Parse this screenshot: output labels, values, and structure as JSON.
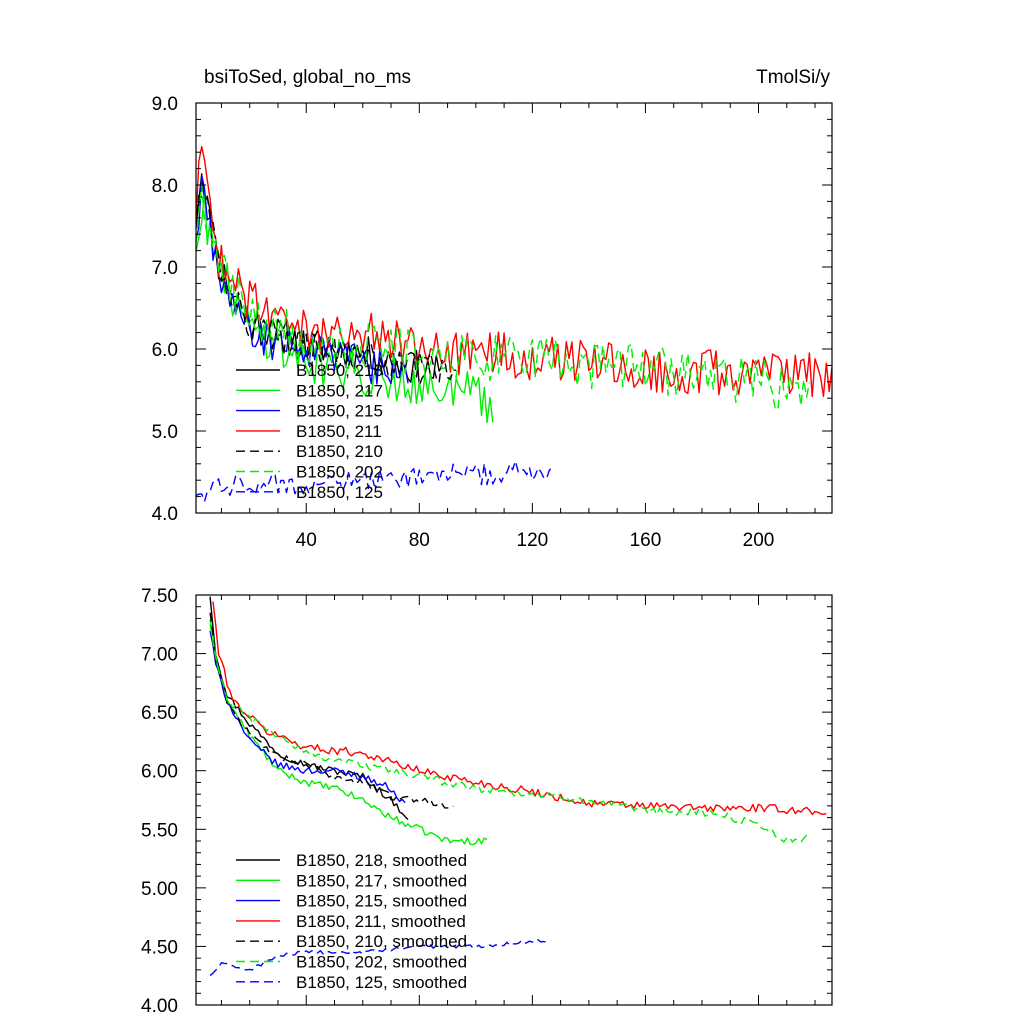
{
  "chart_data": [
    {
      "type": "line",
      "title_left": "bsiToSed, global_no_ms",
      "title_right": "TmolSi/y",
      "xlabel": "",
      "ylabel": "",
      "xlim": [
        1,
        226
      ],
      "ylim": [
        4.0,
        9.0
      ],
      "x_major_ticks": [
        40,
        80,
        120,
        160,
        200
      ],
      "x_major_labels": [
        "40",
        "80",
        "120",
        "160",
        "200"
      ],
      "y_major_ticks": [
        4.0,
        5.0,
        6.0,
        7.0,
        8.0,
        9.0
      ],
      "y_major_labels": [
        "4.0",
        "5.0",
        "6.0",
        "7.0",
        "8.0",
        "9.0"
      ],
      "grid": false,
      "legend_position": "lower-left",
      "series": [
        {
          "name": "B1850, 218",
          "color": "#000000",
          "dash": "solid",
          "length": 88,
          "noise": 0.22,
          "anchors": [
            [
              1,
              7.6
            ],
            [
              3,
              8.2
            ],
            [
              8,
              7.1
            ],
            [
              20,
              6.3
            ],
            [
              40,
              6.05
            ],
            [
              60,
              5.95
            ],
            [
              75,
              5.8
            ],
            [
              88,
              5.7
            ]
          ]
        },
        {
          "name": "B1850, 217",
          "color": "#00ee00",
          "dash": "solid",
          "length": 106,
          "noise": 0.28,
          "anchors": [
            [
              1,
              7.3
            ],
            [
              3,
              7.8
            ],
            [
              10,
              6.9
            ],
            [
              20,
              6.3
            ],
            [
              40,
              5.85
            ],
            [
              60,
              5.7
            ],
            [
              80,
              5.6
            ],
            [
              100,
              5.45
            ],
            [
              105,
              5.2
            ],
            [
              106,
              4.9
            ]
          ]
        },
        {
          "name": "B1850, 215",
          "color": "#0000ff",
          "dash": "solid",
          "length": 76,
          "noise": 0.24,
          "anchors": [
            [
              1,
              7.4
            ],
            [
              3,
              8.0
            ],
            [
              10,
              6.8
            ],
            [
              20,
              6.2
            ],
            [
              40,
              5.95
            ],
            [
              60,
              5.85
            ],
            [
              76,
              5.6
            ]
          ]
        },
        {
          "name": "B1850, 211",
          "color": "#ff0000",
          "dash": "solid",
          "length": 226,
          "noise": 0.28,
          "anchors": [
            [
              1,
              7.6
            ],
            [
              3,
              8.5
            ],
            [
              8,
              7.2
            ],
            [
              20,
              6.6
            ],
            [
              40,
              6.2
            ],
            [
              60,
              6.2
            ],
            [
              80,
              6.0
            ],
            [
              120,
              5.9
            ],
            [
              160,
              5.75
            ],
            [
              200,
              5.7
            ],
            [
              226,
              5.7
            ]
          ]
        },
        {
          "name": "B1850, 210",
          "color": "#000000",
          "dash": "dashed",
          "length": 93,
          "noise": 0.2,
          "anchors": [
            [
              1,
              7.5
            ],
            [
              3,
              8.0
            ],
            [
              10,
              6.9
            ],
            [
              20,
              6.3
            ],
            [
              40,
              6.0
            ],
            [
              60,
              5.9
            ],
            [
              80,
              5.8
            ],
            [
              93,
              5.75
            ]
          ]
        },
        {
          "name": "B1850, 202",
          "color": "#00ee00",
          "dash": "dashed",
          "length": 218,
          "noise": 0.3,
          "anchors": [
            [
              1,
              7.3
            ],
            [
              3,
              7.8
            ],
            [
              10,
              6.9
            ],
            [
              20,
              6.45
            ],
            [
              40,
              6.1
            ],
            [
              60,
              6.05
            ],
            [
              80,
              5.95
            ],
            [
              120,
              5.85
            ],
            [
              160,
              5.75
            ],
            [
              200,
              5.6
            ],
            [
              218,
              5.45
            ]
          ]
        },
        {
          "name": "B1850, 125",
          "color": "#0000ff",
          "dash": "dashed",
          "length": 127,
          "noise": 0.14,
          "anchors": [
            [
              1,
              4.2
            ],
            [
              10,
              4.3
            ],
            [
              30,
              4.35
            ],
            [
              60,
              4.4
            ],
            [
              90,
              4.45
            ],
            [
              110,
              4.5
            ],
            [
              127,
              4.55
            ]
          ]
        }
      ]
    },
    {
      "type": "line",
      "title_left": "",
      "title_right": "",
      "xlabel": "",
      "ylabel": "",
      "xlim": [
        1,
        226
      ],
      "ylim": [
        4.0,
        7.5
      ],
      "x_major_ticks": [
        40,
        80,
        120,
        160,
        200
      ],
      "x_major_labels": [],
      "y_major_ticks": [
        4.0,
        4.5,
        5.0,
        5.5,
        6.0,
        6.5,
        7.0,
        7.5
      ],
      "y_major_labels": [
        "4.00",
        "4.50",
        "5.00",
        "5.50",
        "6.00",
        "6.50",
        "7.00",
        "7.50"
      ],
      "grid": false,
      "legend_position": "lower-left",
      "series": [
        {
          "name": "B1850, 218, smoothed",
          "color": "#000000",
          "dash": "solid",
          "length": 76,
          "noise": 0.03,
          "anchors": [
            [
              6,
              7.5
            ],
            [
              8,
              7.0
            ],
            [
              12,
              6.65
            ],
            [
              20,
              6.4
            ],
            [
              30,
              6.15
            ],
            [
              40,
              6.05
            ],
            [
              50,
              6.0
            ],
            [
              60,
              5.95
            ],
            [
              70,
              5.75
            ],
            [
              76,
              5.6
            ]
          ]
        },
        {
          "name": "B1850, 217, smoothed",
          "color": "#00ee00",
          "dash": "solid",
          "length": 104,
          "noise": 0.03,
          "anchors": [
            [
              6,
              7.3
            ],
            [
              8,
              6.95
            ],
            [
              12,
              6.6
            ],
            [
              20,
              6.3
            ],
            [
              30,
              6.0
            ],
            [
              40,
              5.9
            ],
            [
              50,
              5.85
            ],
            [
              60,
              5.75
            ],
            [
              70,
              5.6
            ],
            [
              80,
              5.5
            ],
            [
              90,
              5.4
            ],
            [
              104,
              5.4
            ]
          ]
        },
        {
          "name": "B1850, 215, smoothed",
          "color": "#0000ff",
          "dash": "solid",
          "length": 75,
          "noise": 0.03,
          "anchors": [
            [
              6,
              7.2
            ],
            [
              8,
              6.9
            ],
            [
              12,
              6.6
            ],
            [
              20,
              6.25
            ],
            [
              30,
              6.05
            ],
            [
              40,
              6.0
            ],
            [
              50,
              6.0
            ],
            [
              60,
              5.95
            ],
            [
              70,
              5.85
            ],
            [
              75,
              5.7
            ]
          ]
        },
        {
          "name": "B1850, 211, smoothed",
          "color": "#ff0000",
          "dash": "solid",
          "length": 224,
          "noise": 0.035,
          "anchors": [
            [
              7,
              7.45
            ],
            [
              9,
              7.0
            ],
            [
              14,
              6.6
            ],
            [
              25,
              6.35
            ],
            [
              40,
              6.2
            ],
            [
              60,
              6.15
            ],
            [
              80,
              6.0
            ],
            [
              100,
              5.9
            ],
            [
              120,
              5.82
            ],
            [
              140,
              5.72
            ],
            [
              160,
              5.7
            ],
            [
              180,
              5.68
            ],
            [
              200,
              5.68
            ],
            [
              224,
              5.65
            ]
          ]
        },
        {
          "name": "B1850, 210, smoothed",
          "color": "#000000",
          "dash": "dashed",
          "length": 92,
          "noise": 0.03,
          "anchors": [
            [
              6,
              7.35
            ],
            [
              8,
              6.95
            ],
            [
              12,
              6.6
            ],
            [
              20,
              6.3
            ],
            [
              30,
              6.12
            ],
            [
              40,
              6.05
            ],
            [
              50,
              5.95
            ],
            [
              60,
              5.9
            ],
            [
              70,
              5.78
            ],
            [
              80,
              5.75
            ],
            [
              92,
              5.7
            ]
          ]
        },
        {
          "name": "B1850, 202, smoothed",
          "color": "#00ee00",
          "dash": "dashed",
          "length": 218,
          "noise": 0.035,
          "anchors": [
            [
              6,
              7.25
            ],
            [
              8,
              6.95
            ],
            [
              12,
              6.6
            ],
            [
              20,
              6.45
            ],
            [
              30,
              6.3
            ],
            [
              40,
              6.15
            ],
            [
              60,
              6.05
            ],
            [
              80,
              5.95
            ],
            [
              100,
              5.85
            ],
            [
              120,
              5.8
            ],
            [
              140,
              5.75
            ],
            [
              160,
              5.65
            ],
            [
              180,
              5.65
            ],
            [
              200,
              5.55
            ],
            [
              210,
              5.4
            ],
            [
              218,
              5.42
            ]
          ]
        },
        {
          "name": "B1850, 125, smoothed",
          "color": "#0000ff",
          "dash": "dashed",
          "length": 125,
          "noise": 0.015,
          "anchors": [
            [
              6,
              4.25
            ],
            [
              10,
              4.35
            ],
            [
              20,
              4.3
            ],
            [
              30,
              4.42
            ],
            [
              40,
              4.45
            ],
            [
              60,
              4.45
            ],
            [
              80,
              4.5
            ],
            [
              100,
              4.5
            ],
            [
              125,
              4.55
            ]
          ]
        }
      ]
    }
  ]
}
